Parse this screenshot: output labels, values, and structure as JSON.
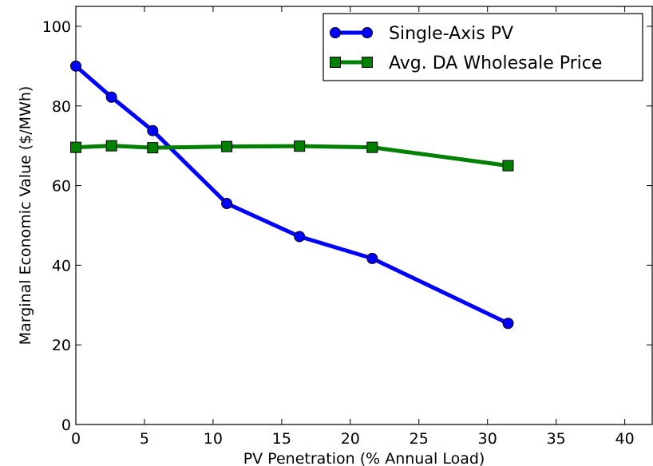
{
  "chart_data": {
    "type": "line",
    "title": "",
    "xlabel": "PV Penetration (% Annual Load)",
    "ylabel": "Marginal Economic Value ($/MWh)",
    "xlim": [
      0,
      42
    ],
    "ylim": [
      0,
      105
    ],
    "xticks": [
      0,
      5,
      10,
      15,
      20,
      25,
      30,
      35,
      40
    ],
    "yticks": [
      0,
      20,
      40,
      60,
      80,
      100
    ],
    "grid": false,
    "legend_position": "top-right",
    "series": [
      {
        "name": "Single-Axis PV",
        "color": "#0000ff",
        "marker": "circle",
        "x": [
          0,
          2.6,
          5.6,
          11.0,
          16.3,
          21.6,
          31.5
        ],
        "y": [
          90.0,
          82.2,
          73.8,
          55.5,
          47.2,
          41.7,
          25.4
        ]
      },
      {
        "name": "Avg. DA Wholesale Price",
        "color": "#008000",
        "marker": "square",
        "x": [
          0,
          2.6,
          5.6,
          11.0,
          16.3,
          21.6,
          31.5
        ],
        "y": [
          69.6,
          70.0,
          69.5,
          69.8,
          69.9,
          69.6,
          65.0
        ]
      }
    ]
  }
}
